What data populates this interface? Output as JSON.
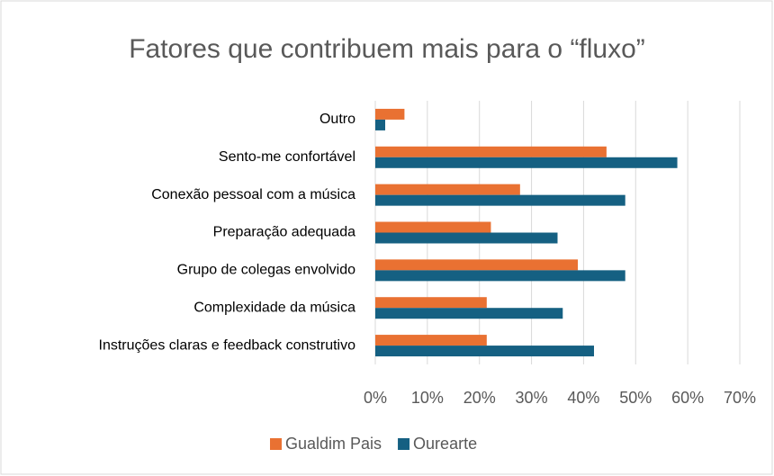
{
  "chart_data": {
    "type": "hbar",
    "title": "Fatores que contribuem mais para o “fluxo”",
    "categories": [
      "Outro",
      "Sento-me confortável",
      "Conexão pessoal com a música",
      "Preparação adequada",
      "Grupo de colegas envolvido",
      "Complexidade da música",
      "Instruções claras e feedback construtivo"
    ],
    "series": [
      {
        "name": "Gualdim Pais",
        "color": "#e97132",
        "values": [
          5.6,
          44.4,
          27.8,
          22.2,
          38.9,
          21.4,
          21.4
        ]
      },
      {
        "name": "Ourearte",
        "color": "#156082",
        "values": [
          1.9,
          58,
          48,
          35,
          48,
          36,
          42
        ]
      }
    ],
    "xlim": [
      0,
      70
    ],
    "xticks": [
      {
        "value": 0,
        "label": "0%"
      },
      {
        "value": 10,
        "label": "10%"
      },
      {
        "value": 20,
        "label": "20%"
      },
      {
        "value": 30,
        "label": "30%"
      },
      {
        "value": 40,
        "label": "40%"
      },
      {
        "value": 50,
        "label": "50%"
      },
      {
        "value": 60,
        "label": "60%"
      },
      {
        "value": 70,
        "label": "70%"
      }
    ],
    "grid": true,
    "legend": "bottom"
  }
}
